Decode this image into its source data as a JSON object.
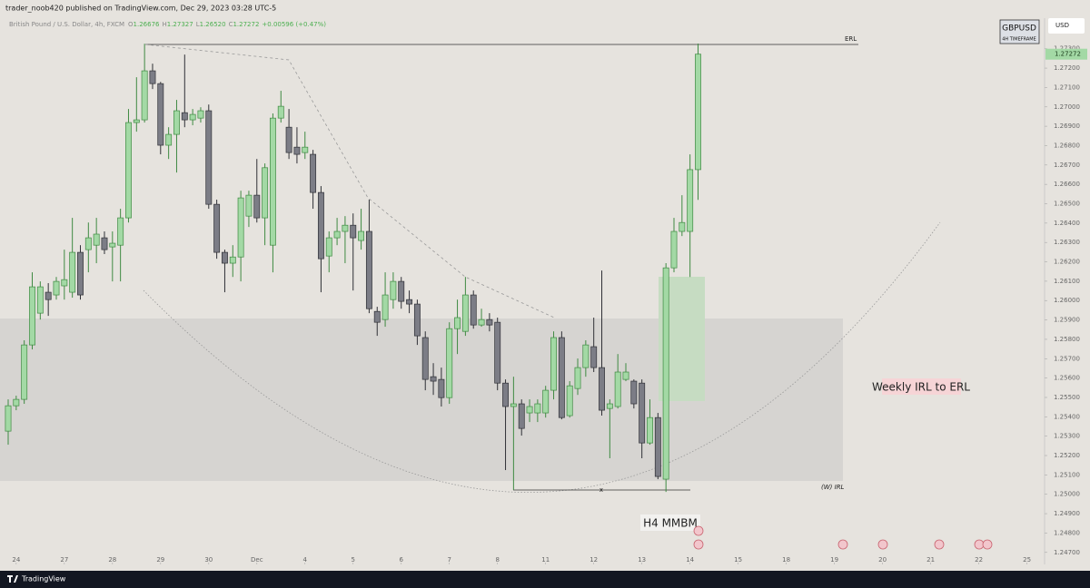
{
  "chart_data": {
    "type": "candlestick",
    "author_line": "trader_noob420 published on TradingView.com, Dec 29, 2023 03:28 UTC-5",
    "title": "British Pound / U.S. Dollar, 4h, FXCM",
    "ohlc_fields": [
      {
        "label": "O",
        "value": "1.26676"
      },
      {
        "label": "H",
        "value": "1.27327"
      },
      {
        "label": "L",
        "value": "1.26520"
      },
      {
        "label": "C",
        "value": "1.27272"
      },
      {
        "label": "",
        "value": "+0.00596 (+0.47%)"
      }
    ],
    "badge": {
      "symbol": "GBPUSD",
      "timeframe": "4H TIMEFRAME"
    },
    "currency": "USD",
    "last_price_label": "1.27272",
    "annotations": {
      "erl": "ERL",
      "w_irl": "(W) IRL",
      "weekly": "Weekly IRL to ERL",
      "h4": "H4 MMBM",
      "x_mark": "x"
    },
    "footer_brand": "TradingView",
    "up_color": "#a3d9a5",
    "down_color": "#7c7d86",
    "x": [
      0,
      1,
      2,
      3,
      4,
      5,
      6,
      7,
      8,
      9,
      10,
      11,
      12,
      13,
      14,
      15,
      16,
      17,
      18,
      19,
      20,
      21,
      22,
      23,
      24,
      25,
      26,
      27,
      28,
      29,
      30,
      31,
      32,
      33,
      34,
      35,
      36,
      37,
      38,
      39,
      40,
      41,
      42,
      43,
      44,
      45,
      46,
      47,
      48,
      49,
      50,
      51,
      52,
      53,
      54,
      55,
      56,
      57,
      58,
      59,
      60,
      61,
      62,
      63,
      64,
      65,
      66,
      67,
      68,
      69,
      70,
      71,
      72,
      73,
      74,
      75,
      76,
      77,
      78,
      79,
      80,
      81,
      82,
      83,
      84,
      85,
      86
    ],
    "ohlc": [
      [
        1.25326,
        1.2549,
        1.25256,
        1.25457
      ],
      [
        1.25457,
        1.25509,
        1.25434,
        1.2549
      ],
      [
        1.2549,
        1.25795,
        1.25467,
        1.25771
      ],
      [
        1.25771,
        1.26146,
        1.25748,
        1.26071
      ],
      [
        1.25935,
        1.26099,
        1.25902,
        1.26071
      ],
      [
        1.26043,
        1.2609,
        1.25921,
        1.26005
      ],
      [
        1.26029,
        1.26122,
        1.26005,
        1.26099
      ],
      [
        1.26076,
        1.26263,
        1.26005,
        1.26108
      ],
      [
        1.26043,
        1.26427,
        1.26015,
        1.26249
      ],
      [
        1.26249,
        1.26286,
        1.26005,
        1.26029
      ],
      [
        1.26263,
        1.26403,
        1.26146,
        1.26324
      ],
      [
        1.26286,
        1.26427,
        1.26193,
        1.26343
      ],
      [
        1.26324,
        1.26357,
        1.2624,
        1.26263
      ],
      [
        1.26277,
        1.26357,
        1.26099,
        1.26296
      ],
      [
        1.26286,
        1.26474,
        1.26099,
        1.26427
      ],
      [
        1.26427,
        1.26989,
        1.26403,
        1.26919
      ],
      [
        1.26919,
        1.27153,
        1.26872,
        1.26933
      ],
      [
        1.26933,
        1.27326,
        1.26919,
        1.27186
      ],
      [
        1.27186,
        1.27223,
        1.27092,
        1.2712
      ],
      [
        1.2712,
        1.27129,
        1.26755,
        1.26802
      ],
      [
        1.26802,
        1.26895,
        1.26731,
        1.26858
      ],
      [
        1.26858,
        1.27036,
        1.26661,
        1.2698
      ],
      [
        1.2697,
        1.2727,
        1.26895,
        1.26933
      ],
      [
        1.26933,
        1.26989,
        1.26905,
        1.26961
      ],
      [
        1.26942,
        1.26998,
        1.26919,
        1.2698
      ],
      [
        1.2698,
        1.27012,
        1.26474,
        1.26497
      ],
      [
        1.26497,
        1.26521,
        1.26216,
        1.26249
      ],
      [
        1.26249,
        1.26263,
        1.26043,
        1.26193
      ],
      [
        1.26193,
        1.26286,
        1.26122,
        1.26225
      ],
      [
        1.26225,
        1.26567,
        1.26099,
        1.2653
      ],
      [
        1.26436,
        1.26567,
        1.2638,
        1.26544
      ],
      [
        1.26544,
        1.26731,
        1.26403,
        1.26427
      ],
      [
        1.26427,
        1.26708,
        1.26286,
        1.26686
      ],
      [
        1.26286,
        1.26966,
        1.26146,
        1.26942
      ],
      [
        1.26942,
        1.27083,
        1.26919,
        1.27003
      ],
      [
        1.26895,
        1.26989,
        1.26731,
        1.26764
      ],
      [
        1.26792,
        1.26895,
        1.26708,
        1.26755
      ],
      [
        1.26764,
        1.26872,
        1.26731,
        1.26792
      ],
      [
        1.26755,
        1.26778,
        1.26474,
        1.26558
      ],
      [
        1.26558,
        1.26591,
        1.26043,
        1.26216
      ],
      [
        1.2623,
        1.26357,
        1.26146,
        1.26324
      ],
      [
        1.26324,
        1.26427,
        1.26286,
        1.26357
      ],
      [
        1.26357,
        1.26436,
        1.26193,
        1.26389
      ],
      [
        1.26389,
        1.2645,
        1.26052,
        1.26324
      ],
      [
        1.2631,
        1.26474,
        1.26263,
        1.26357
      ],
      [
        1.26357,
        1.26521,
        1.25935,
        1.25958
      ],
      [
        1.25944,
        1.25968,
        1.25818,
        1.25888
      ],
      [
        1.25902,
        1.26146,
        1.25865,
        1.26029
      ],
      [
        1.26005,
        1.26146,
        1.25958,
        1.26099
      ],
      [
        1.26099,
        1.26122,
        1.25958,
        1.25996
      ],
      [
        1.26005,
        1.26052,
        1.25935,
        1.25982
      ],
      [
        1.25982,
        1.26005,
        1.25771,
        1.25818
      ],
      [
        1.25809,
        1.25841,
        1.25537,
        1.25593
      ],
      [
        1.25607,
        1.25677,
        1.25513,
        1.25584
      ],
      [
        1.25593,
        1.25654,
        1.25453,
        1.25499
      ],
      [
        1.25499,
        1.25888,
        1.25467,
        1.25855
      ],
      [
        1.25855,
        1.26005,
        1.25724,
        1.25912
      ],
      [
        1.25841,
        1.26122,
        1.25818,
        1.26029
      ],
      [
        1.26029,
        1.26052,
        1.25855,
        1.25874
      ],
      [
        1.25874,
        1.25958,
        1.25865,
        1.25902
      ],
      [
        1.25902,
        1.25935,
        1.25841,
        1.25874
      ],
      [
        1.25888,
        1.25912,
        1.25537,
        1.25574
      ],
      [
        1.25574,
        1.25593,
        1.25125,
        1.25453
      ],
      [
        1.25453,
        1.25607,
        1.25022,
        1.25467
      ],
      [
        1.25467,
        1.2549,
        1.25303,
        1.2534
      ],
      [
        1.2542,
        1.2549,
        1.25373,
        1.25453
      ],
      [
        1.2542,
        1.2549,
        1.25373,
        1.25467
      ],
      [
        1.2542,
        1.2556,
        1.25396,
        1.25537
      ],
      [
        1.25537,
        1.25841,
        1.2549,
        1.25809
      ],
      [
        1.25809,
        1.25841,
        1.25387,
        1.25396
      ],
      [
        1.25406,
        1.25584,
        1.25396,
        1.2556
      ],
      [
        1.25546,
        1.25701,
        1.25513,
        1.25654
      ],
      [
        1.25654,
        1.25795,
        1.25607,
        1.25771
      ],
      [
        1.25762,
        1.25912,
        1.25631,
        1.25654
      ],
      [
        1.25654,
        1.26155,
        1.25406,
        1.25434
      ],
      [
        1.25443,
        1.2549,
        1.25186,
        1.25467
      ],
      [
        1.25453,
        1.25724,
        1.25443,
        1.25631
      ],
      [
        1.25593,
        1.25677,
        1.25584,
        1.25631
      ],
      [
        1.25584,
        1.25593,
        1.25443,
        1.25467
      ],
      [
        1.25574,
        1.25593,
        1.25186,
        1.25265
      ],
      [
        1.25265,
        1.2549,
        1.25256,
        1.25396
      ],
      [
        1.25396,
        1.2542,
        1.25078,
        1.25092
      ],
      [
        1.25078,
        1.26193,
        1.25012,
        1.26169
      ],
      [
        1.26169,
        1.26427,
        1.26146,
        1.26357
      ],
      [
        1.26357,
        1.26544,
        1.26333,
        1.26403
      ],
      [
        1.26357,
        1.26755,
        1.26122,
        1.26676
      ],
      [
        1.26676,
        1.27327,
        1.2652,
        1.27272
      ]
    ],
    "xlim": [
      -1.02,
      129.2
    ],
    "xticks": [
      {
        "value": 1,
        "label": "24"
      },
      {
        "value": 7,
        "label": "27"
      },
      {
        "value": 13,
        "label": "28"
      },
      {
        "value": 19,
        "label": "29"
      },
      {
        "value": 25,
        "label": "30"
      },
      {
        "value": 31,
        "label": "Dec"
      },
      {
        "value": 37,
        "label": "4"
      },
      {
        "value": 43,
        "label": "5"
      },
      {
        "value": 49,
        "label": "6"
      },
      {
        "value": 55,
        "label": "7"
      },
      {
        "value": 61,
        "label": "8"
      },
      {
        "value": 67,
        "label": "11"
      },
      {
        "value": 73,
        "label": "12"
      },
      {
        "value": 79,
        "label": "13"
      },
      {
        "value": 85,
        "label": "14"
      },
      {
        "value": 91,
        "label": "15"
      },
      {
        "value": 97,
        "label": "18"
      },
      {
        "value": 103,
        "label": "19"
      },
      {
        "value": 109,
        "label": "20"
      },
      {
        "value": 115,
        "label": "21"
      },
      {
        "value": 121,
        "label": "22"
      },
      {
        "value": 127,
        "label": "25"
      }
    ],
    "ylim": [
      1.24638,
      1.27458
    ],
    "yticks": [
      {
        "value": 1.247,
        "label": "1.24700"
      },
      {
        "value": 1.248,
        "label": "1.24800"
      },
      {
        "value": 1.249,
        "label": "1.24900"
      },
      {
        "value": 1.25,
        "label": "1.25000"
      },
      {
        "value": 1.251,
        "label": "1.25100"
      },
      {
        "value": 1.252,
        "label": "1.25200"
      },
      {
        "value": 1.253,
        "label": "1.25300"
      },
      {
        "value": 1.254,
        "label": "1.25400"
      },
      {
        "value": 1.255,
        "label": "1.25500"
      },
      {
        "value": 1.256,
        "label": "1.25600"
      },
      {
        "value": 1.257,
        "label": "1.25700"
      },
      {
        "value": 1.258,
        "label": "1.25800"
      },
      {
        "value": 1.259,
        "label": "1.25900"
      },
      {
        "value": 1.26,
        "label": "1.26000"
      },
      {
        "value": 1.261,
        "label": "1.26100"
      },
      {
        "value": 1.262,
        "label": "1.26200"
      },
      {
        "value": 1.263,
        "label": "1.26300"
      },
      {
        "value": 1.264,
        "label": "1.26400"
      },
      {
        "value": 1.265,
        "label": "1.26500"
      },
      {
        "value": 1.266,
        "label": "1.26600"
      },
      {
        "value": 1.267,
        "label": "1.26700"
      },
      {
        "value": 1.268,
        "label": "1.26800"
      },
      {
        "value": 1.269,
        "label": "1.26900"
      },
      {
        "value": 1.27,
        "label": "1.27000"
      },
      {
        "value": 1.271,
        "label": "1.27100"
      },
      {
        "value": 1.272,
        "label": "1.27200"
      },
      {
        "value": 1.273,
        "label": "1.27300"
      }
    ],
    "grid": false
  }
}
